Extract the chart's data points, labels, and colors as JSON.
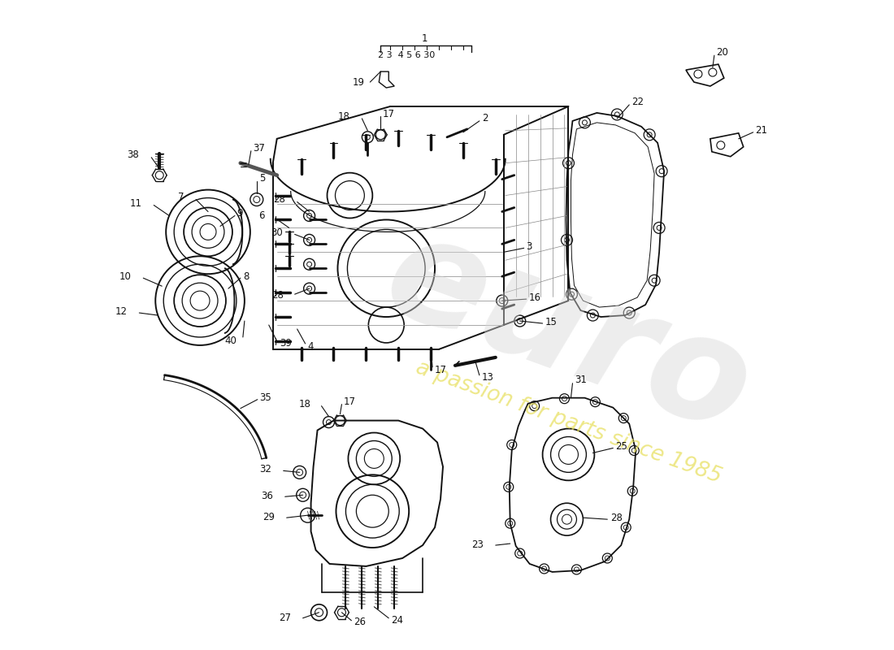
{
  "background_color": "#ffffff",
  "line_color": "#111111",
  "label_fontsize": 8.5,
  "figsize": [
    11.0,
    8.0
  ],
  "dpi": 100,
  "watermark1": "euro",
  "watermark2": "a passion for parts since 1985",
  "watermark_color": "#d0d0d0",
  "watermark_yellow": "#e8e060"
}
